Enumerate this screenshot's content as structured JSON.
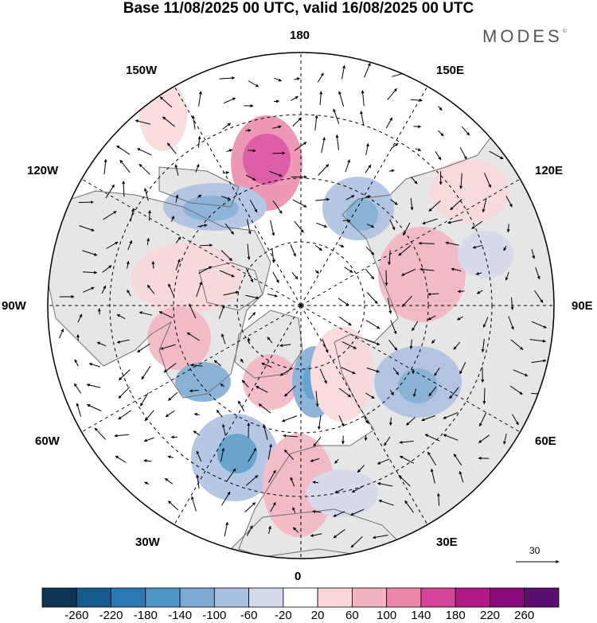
{
  "header": {
    "title": "Base 11/08/2025 00 UTC, valid 16/08/2025 00 UTC",
    "brand": "MODES",
    "brand_mark": "©"
  },
  "map": {
    "projection": "north polar stereographic",
    "longitude_labels": {
      "north": "180",
      "south": "0",
      "west": "90W",
      "east": "90E",
      "nw1": "150W",
      "nw2": "120W",
      "ne1": "150E",
      "ne2": "120E",
      "sw1": "60W",
      "sw2": "30W",
      "se1": "60E",
      "se2": "30E"
    },
    "vector_scale": "30",
    "colors": {
      "land": "#e6e6e6",
      "ocean": "#ffffff",
      "coast": "#6e6e6e",
      "grid": "#000000"
    }
  },
  "colorbar": {
    "ticks": [
      "-260",
      "-220",
      "-180",
      "-140",
      "-100",
      "-60",
      "-20",
      "20",
      "60",
      "100",
      "140",
      "180",
      "220",
      "260"
    ],
    "colors": [
      "#0d3553",
      "#145a8a",
      "#2b78b2",
      "#4f95c6",
      "#7ba9d3",
      "#a9bfdf",
      "#d4d8ec",
      "#ffffff",
      "#f9d7d9",
      "#f3b3bf",
      "#ec87ac",
      "#d6449a",
      "#b3188a",
      "#8b0a7a",
      "#5a0f6e"
    ]
  }
}
